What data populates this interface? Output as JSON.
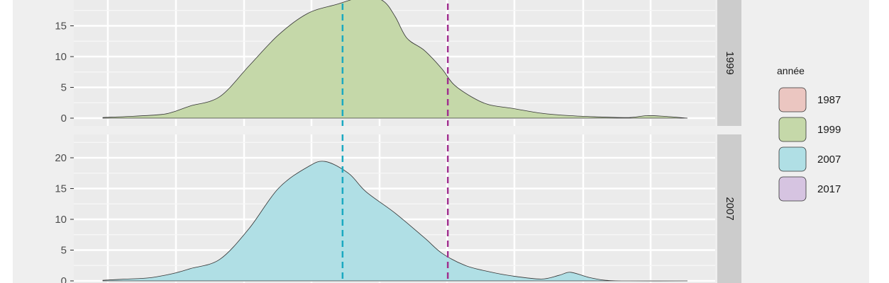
{
  "chart_data": {
    "type": "area",
    "panels": [
      {
        "label": "1999",
        "fill": "#c5d8a9",
        "ylim": [
          0,
          19
        ],
        "yticks": [
          0,
          5,
          10,
          15
        ],
        "x": [
          0.0,
          0.05,
          0.1,
          0.12,
          0.15,
          0.2,
          0.25,
          0.3,
          0.35,
          0.4,
          0.45,
          0.48,
          0.5,
          0.52,
          0.55,
          0.58,
          0.6,
          0.63,
          0.66,
          0.7,
          0.75,
          0.8,
          0.85,
          0.9,
          0.93,
          0.96,
          1.0
        ],
        "y": [
          0.1,
          0.3,
          0.6,
          1.0,
          2.0,
          3.5,
          8.5,
          13.5,
          17.0,
          18.5,
          19.8,
          19.0,
          16.5,
          13.0,
          11.0,
          8.0,
          5.5,
          3.5,
          2.2,
          1.6,
          0.8,
          0.4,
          0.2,
          0.1,
          0.4,
          0.3,
          0.0
        ]
      },
      {
        "label": "2007",
        "fill": "#b0dfe5",
        "ylim": [
          0,
          23
        ],
        "yticks": [
          0,
          5,
          10,
          15,
          20
        ],
        "x": [
          0.0,
          0.04,
          0.08,
          0.12,
          0.15,
          0.2,
          0.25,
          0.3,
          0.35,
          0.38,
          0.42,
          0.45,
          0.5,
          0.55,
          0.58,
          0.62,
          0.66,
          0.7,
          0.75,
          0.78,
          0.8,
          0.83,
          0.86,
          0.9,
          1.0
        ],
        "y": [
          0.1,
          0.3,
          0.5,
          1.2,
          2.0,
          3.5,
          8.5,
          15.0,
          18.5,
          19.4,
          17.5,
          14.5,
          11.0,
          7.0,
          4.5,
          2.5,
          1.5,
          0.8,
          0.3,
          0.9,
          1.4,
          0.6,
          0.1,
          0.0,
          0.0
        ]
      }
    ],
    "xlim": [
      0,
      1
    ],
    "vlines": [
      {
        "x": 0.41,
        "color": "#1ba9c1"
      },
      {
        "x": 0.59,
        "color": "#a0308f"
      }
    ],
    "legend": {
      "title": "année",
      "position": "right",
      "items": [
        {
          "label": "1987",
          "color": "#ebc6c1"
        },
        {
          "label": "1999",
          "color": "#c5d8a9"
        },
        {
          "label": "2007",
          "color": "#b0dfe5"
        },
        {
          "label": "2017",
          "color": "#d6c4e1"
        }
      ]
    },
    "grid": true
  }
}
